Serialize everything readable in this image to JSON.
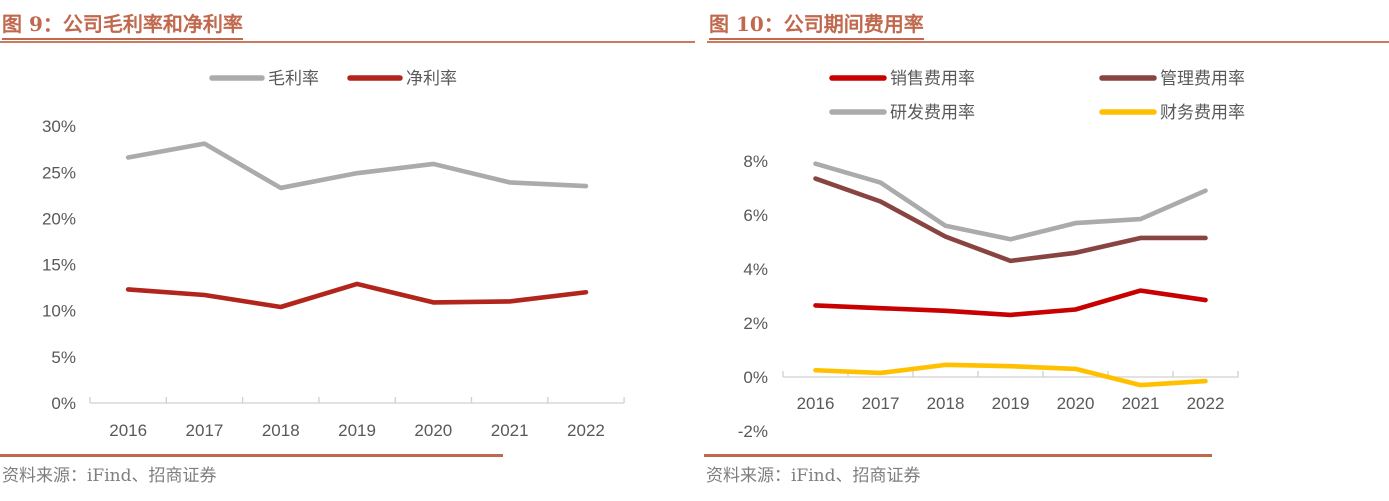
{
  "chart_data": [
    {
      "type": "line",
      "title": "图 9：公司毛利率和净利率",
      "source": "资料来源：iFind、招商证券",
      "categories": [
        "2016",
        "2017",
        "2018",
        "2019",
        "2020",
        "2021",
        "2022"
      ],
      "series": [
        {
          "name": "毛利率",
          "color": "#ABABAB",
          "values": [
            26.6,
            28.1,
            23.3,
            24.9,
            25.9,
            23.9,
            23.5
          ]
        },
        {
          "name": "净利率",
          "color": "#B2251C",
          "values": [
            12.3,
            11.7,
            10.4,
            12.9,
            10.9,
            11.0,
            12.0
          ]
        }
      ],
      "ylim": [
        0,
        30
      ],
      "yticks": [
        0,
        5,
        10,
        15,
        20,
        25,
        30
      ],
      "ytick_suffix": "%",
      "xlabel": "",
      "ylabel": "",
      "legend_position": "top",
      "grid": false
    },
    {
      "type": "line",
      "title": "图 10：公司期间费用率",
      "source": "资料来源：iFind、招商证券",
      "categories": [
        "2016",
        "2017",
        "2018",
        "2019",
        "2020",
        "2021",
        "2022"
      ],
      "series": [
        {
          "name": "销售费用率",
          "color": "#C80000",
          "values": [
            2.65,
            2.55,
            2.45,
            2.3,
            2.5,
            3.2,
            2.85
          ]
        },
        {
          "name": "管理费用率",
          "color": "#874440",
          "values": [
            7.35,
            6.5,
            5.2,
            4.3,
            4.6,
            5.15,
            5.15
          ]
        },
        {
          "name": "研发费用率",
          "color": "#ABABAB",
          "values": [
            7.9,
            7.2,
            5.6,
            5.1,
            5.7,
            5.85,
            6.9
          ]
        },
        {
          "name": "财务费用率",
          "color": "#FFC000",
          "values": [
            0.25,
            0.15,
            0.45,
            0.4,
            0.3,
            -0.3,
            -0.15
          ]
        }
      ],
      "ylim": [
        -2,
        8
      ],
      "yticks": [
        -2,
        0,
        2,
        4,
        6,
        8
      ],
      "ytick_suffix": "%",
      "xlabel": "",
      "ylabel": "",
      "legend_position": "top",
      "grid": false
    }
  ]
}
